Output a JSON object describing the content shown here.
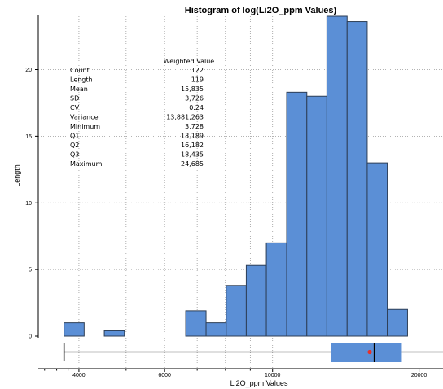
{
  "chart_data": {
    "type": "histogram",
    "title": "Histogram of log(Li2O_ppm Values)",
    "xlabel": "Li2O_ppm Values",
    "ylabel": "Length",
    "x_scale": "log",
    "x_ticks": [
      4000,
      6000,
      10000,
      20000
    ],
    "x_tick_labels": [
      "4000",
      "6000",
      "10000",
      "20000"
    ],
    "y_ticks": [
      0,
      5,
      10,
      15,
      20
    ],
    "y_tick_labels": [
      "0",
      "5",
      "10",
      "15",
      "20"
    ],
    "ylim": [
      0,
      24
    ],
    "bar_color": "#5b8fd6",
    "bins": [
      {
        "x0": 3728,
        "x1": 4100,
        "count": 1.0
      },
      {
        "x0": 4510,
        "x1": 4960,
        "count": 0.4
      },
      {
        "x0": 6630,
        "x1": 7300,
        "count": 1.9
      },
      {
        "x0": 7300,
        "x1": 8030,
        "count": 1.0
      },
      {
        "x0": 8030,
        "x1": 8830,
        "count": 3.8
      },
      {
        "x0": 8830,
        "x1": 9710,
        "count": 5.3
      },
      {
        "x0": 9710,
        "x1": 10690,
        "count": 7.0
      },
      {
        "x0": 10690,
        "x1": 11760,
        "count": 18.3
      },
      {
        "x0": 11760,
        "x1": 12930,
        "count": 18.0
      },
      {
        "x0": 12930,
        "x1": 14230,
        "count": 24.0
      },
      {
        "x0": 14230,
        "x1": 15650,
        "count": 23.6
      },
      {
        "x0": 15650,
        "x1": 17210,
        "count": 13.0
      },
      {
        "x0": 17210,
        "x1": 18940,
        "count": 2.0
      }
    ],
    "boxplot": {
      "min": 3728,
      "q1": 13189,
      "median": 16182,
      "q3": 18435,
      "mean": 15835,
      "max": 24685,
      "box_color": "#5b8fd6",
      "mean_color": "#e8302a"
    },
    "stats_table": {
      "header": "Weighted Value",
      "rows": [
        {
          "label": "Count",
          "value": "122"
        },
        {
          "label": "Length",
          "value": "119"
        },
        {
          "label": "Mean",
          "value": "15,835"
        },
        {
          "label": "SD",
          "value": "3,726"
        },
        {
          "label": "CV",
          "value": "0.24"
        },
        {
          "label": "Variance",
          "value": "13,881,263"
        },
        {
          "label": "Minimum",
          "value": "3,728"
        },
        {
          "label": "Q1",
          "value": "13,189"
        },
        {
          "label": "Q2",
          "value": "16,182"
        },
        {
          "label": "Q3",
          "value": "18,435"
        },
        {
          "label": "Maximum",
          "value": "24,685"
        }
      ]
    }
  }
}
